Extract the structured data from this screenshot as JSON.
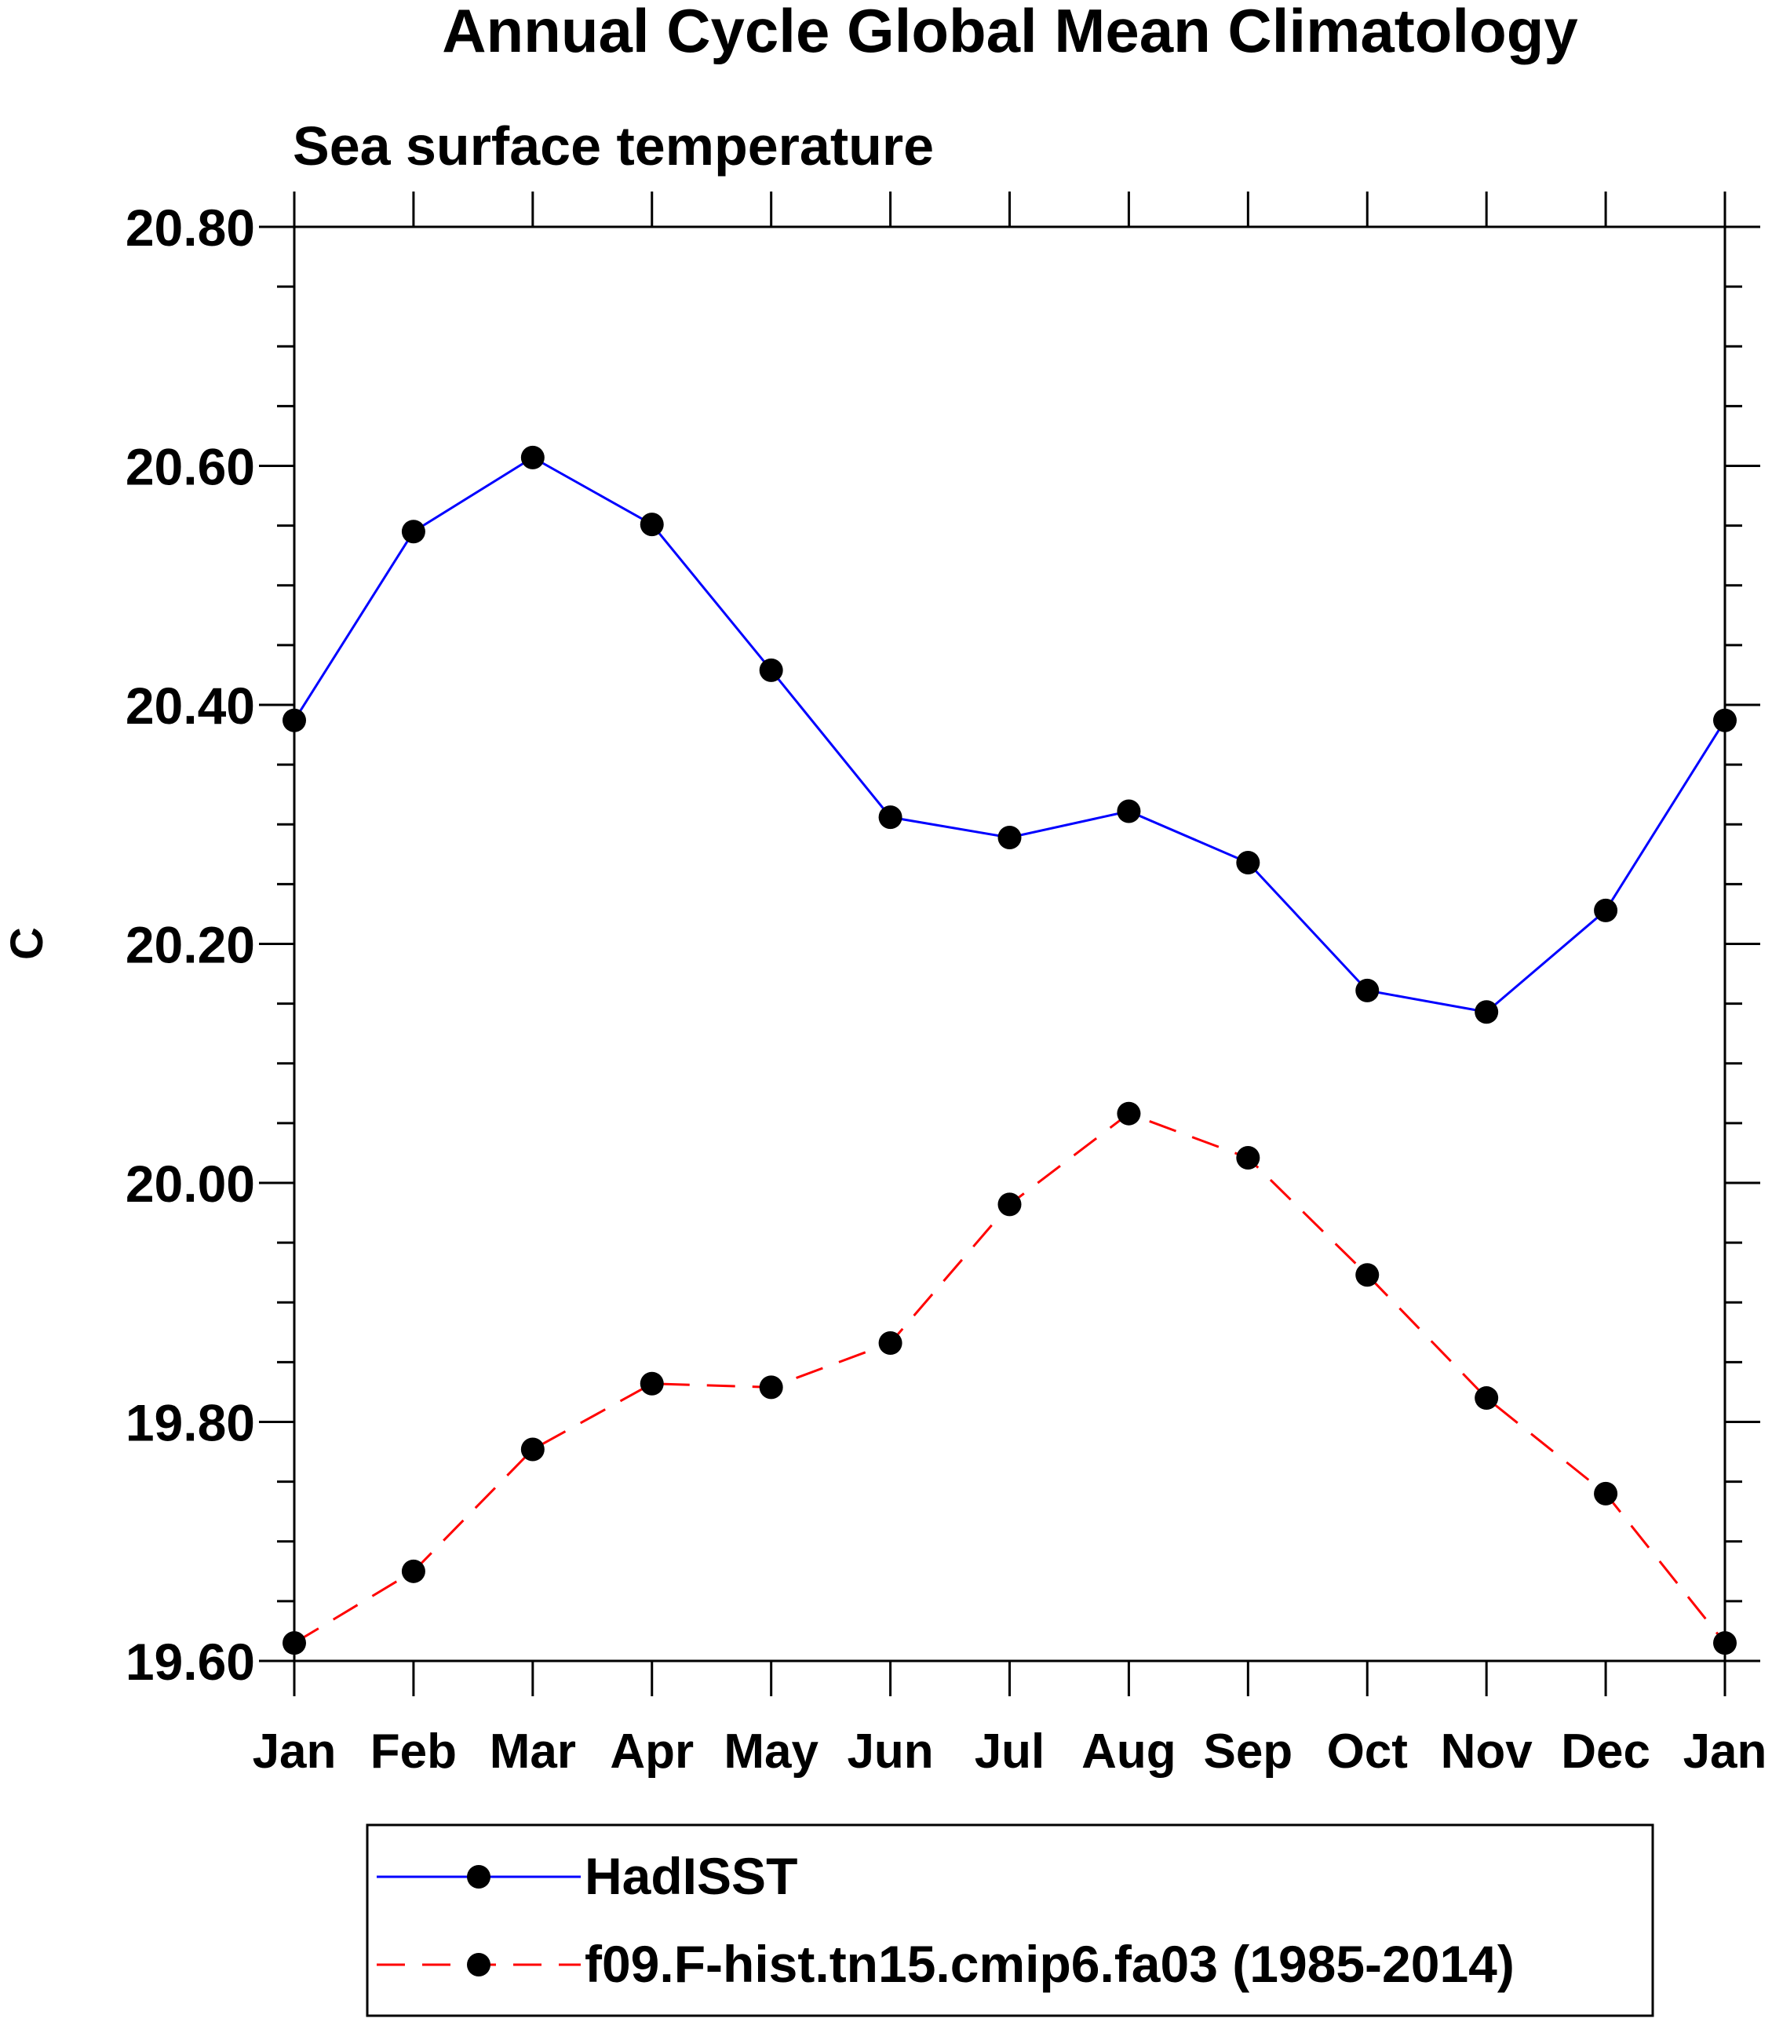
{
  "chart_data": {
    "type": "line",
    "title": "Annual Cycle Global Mean Climatology",
    "subtitle": "Sea surface temperature",
    "ylabel": "C",
    "xlabel": "",
    "categories": [
      "Jan",
      "Feb",
      "Mar",
      "Apr",
      "May",
      "Jun",
      "Jul",
      "Aug",
      "Sep",
      "Oct",
      "Nov",
      "Dec",
      "Jan"
    ],
    "yticks": [
      "19.60",
      "19.80",
      "20.00",
      "20.20",
      "20.40",
      "20.60",
      "20.80"
    ],
    "ylim": [
      19.6,
      20.8
    ],
    "ytick_step": 0.2,
    "yminor_step": 0.05,
    "grid": false,
    "series": [
      {
        "name": "HadISST",
        "color": "#0000ff",
        "dash": "solid",
        "marker": "filled-circle",
        "values": [
          20.387,
          20.545,
          20.607,
          20.551,
          20.429,
          20.306,
          20.289,
          20.311,
          20.268,
          20.161,
          20.143,
          20.228,
          20.387
        ]
      },
      {
        "name": "f09.F-hist.tn15.cmip6.fa03 (1985-2014)",
        "color": "#ff0000",
        "dash": "dashed",
        "marker": "filled-circle",
        "values": [
          19.615,
          19.675,
          19.777,
          19.832,
          19.829,
          19.866,
          19.982,
          20.058,
          20.021,
          19.923,
          19.82,
          19.74,
          19.615
        ]
      }
    ],
    "legend": {
      "position": "bottom-center"
    }
  }
}
